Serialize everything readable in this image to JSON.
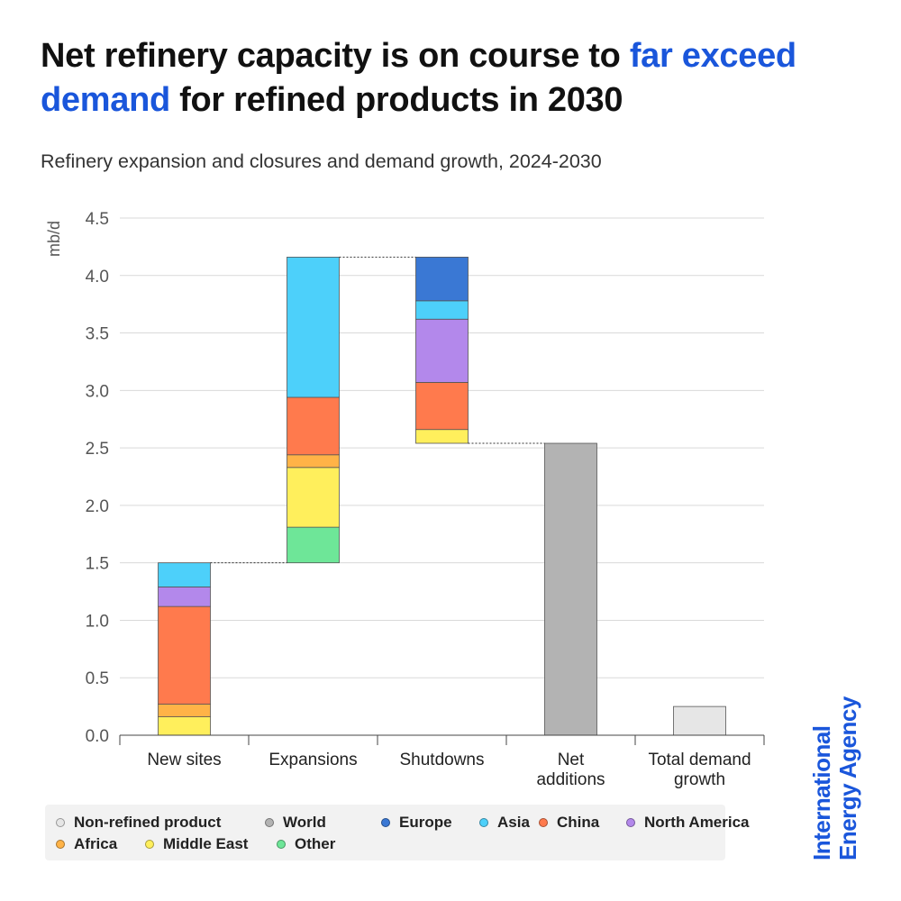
{
  "header": {
    "title_part1": "Net refinery capacity is on course to ",
    "title_highlight": "far exceed demand",
    "title_part2": " for refined products in 2030",
    "subtitle": "Refinery expansion and closures and demand growth, 2024-2030"
  },
  "colors": {
    "highlight": "#1a56db",
    "Non-refined product": "#e6e6e6",
    "World": "#b3b3b3",
    "Europe": "#3a78d4",
    "Asia": "#4dd0fa",
    "China": "#ff7a4d",
    "North America": "#b388eb",
    "Africa": "#ffb347",
    "Middle East": "#ffef5c",
    "Other": "#6ee698"
  },
  "legend": {
    "row1": [
      "Non-refined product",
      "World",
      "Europe",
      "Asia",
      "China",
      "North America"
    ],
    "row2": [
      "Africa",
      "Middle East",
      "Other"
    ]
  },
  "chart_data": {
    "type": "bar",
    "subtype": "stacked-waterfall",
    "title": "Refinery expansion and closures and demand growth, 2024-2030",
    "ylabel": "mb/d",
    "xlabel": "",
    "ylim": [
      0,
      4.5
    ],
    "yticks": [
      "0.0",
      "0.5",
      "1.0",
      "1.5",
      "2.0",
      "2.5",
      "3.0",
      "3.5",
      "4.0",
      "4.5"
    ],
    "grid": true,
    "legend_position": "bottom",
    "categories": [
      {
        "label": [
          "New sites"
        ],
        "base": 0,
        "segments": [
          {
            "series": "Middle East",
            "value": 0.16
          },
          {
            "series": "Africa",
            "value": 0.11
          },
          {
            "series": "China",
            "value": 0.85
          },
          {
            "series": "North America",
            "value": 0.17
          },
          {
            "series": "Asia",
            "value": 0.21
          }
        ]
      },
      {
        "label": [
          "Expansions"
        ],
        "base": 1.5,
        "segments": [
          {
            "series": "Other",
            "value": 0.31
          },
          {
            "series": "Middle East",
            "value": 0.52
          },
          {
            "series": "Africa",
            "value": 0.11
          },
          {
            "series": "China",
            "value": 0.5
          },
          {
            "series": "Asia",
            "value": 1.22
          }
        ]
      },
      {
        "label": [
          "Shutdowns"
        ],
        "base": 2.54,
        "segments": [
          {
            "series": "Middle East",
            "value": 0.12
          },
          {
            "series": "China",
            "value": 0.41
          },
          {
            "series": "North America",
            "value": 0.55
          },
          {
            "series": "Asia",
            "value": 0.16
          },
          {
            "series": "Europe",
            "value": 0.38
          }
        ]
      },
      {
        "label": [
          "Net",
          "additions"
        ],
        "base": 0,
        "segments": [
          {
            "series": "World",
            "value": 2.54
          }
        ]
      },
      {
        "label": [
          "Total demand",
          "growth"
        ],
        "base": 0,
        "segments": [
          {
            "series": "Non-refined product",
            "value": 0.25
          }
        ]
      }
    ],
    "connectors": [
      {
        "from": 0,
        "to": 1,
        "value": 1.5
      },
      {
        "from": 1,
        "to": 2,
        "value": 4.16
      },
      {
        "from": 2,
        "to": 3,
        "value": 2.54
      }
    ]
  },
  "brand": {
    "line1": "International",
    "line2": "Energy Agency"
  }
}
